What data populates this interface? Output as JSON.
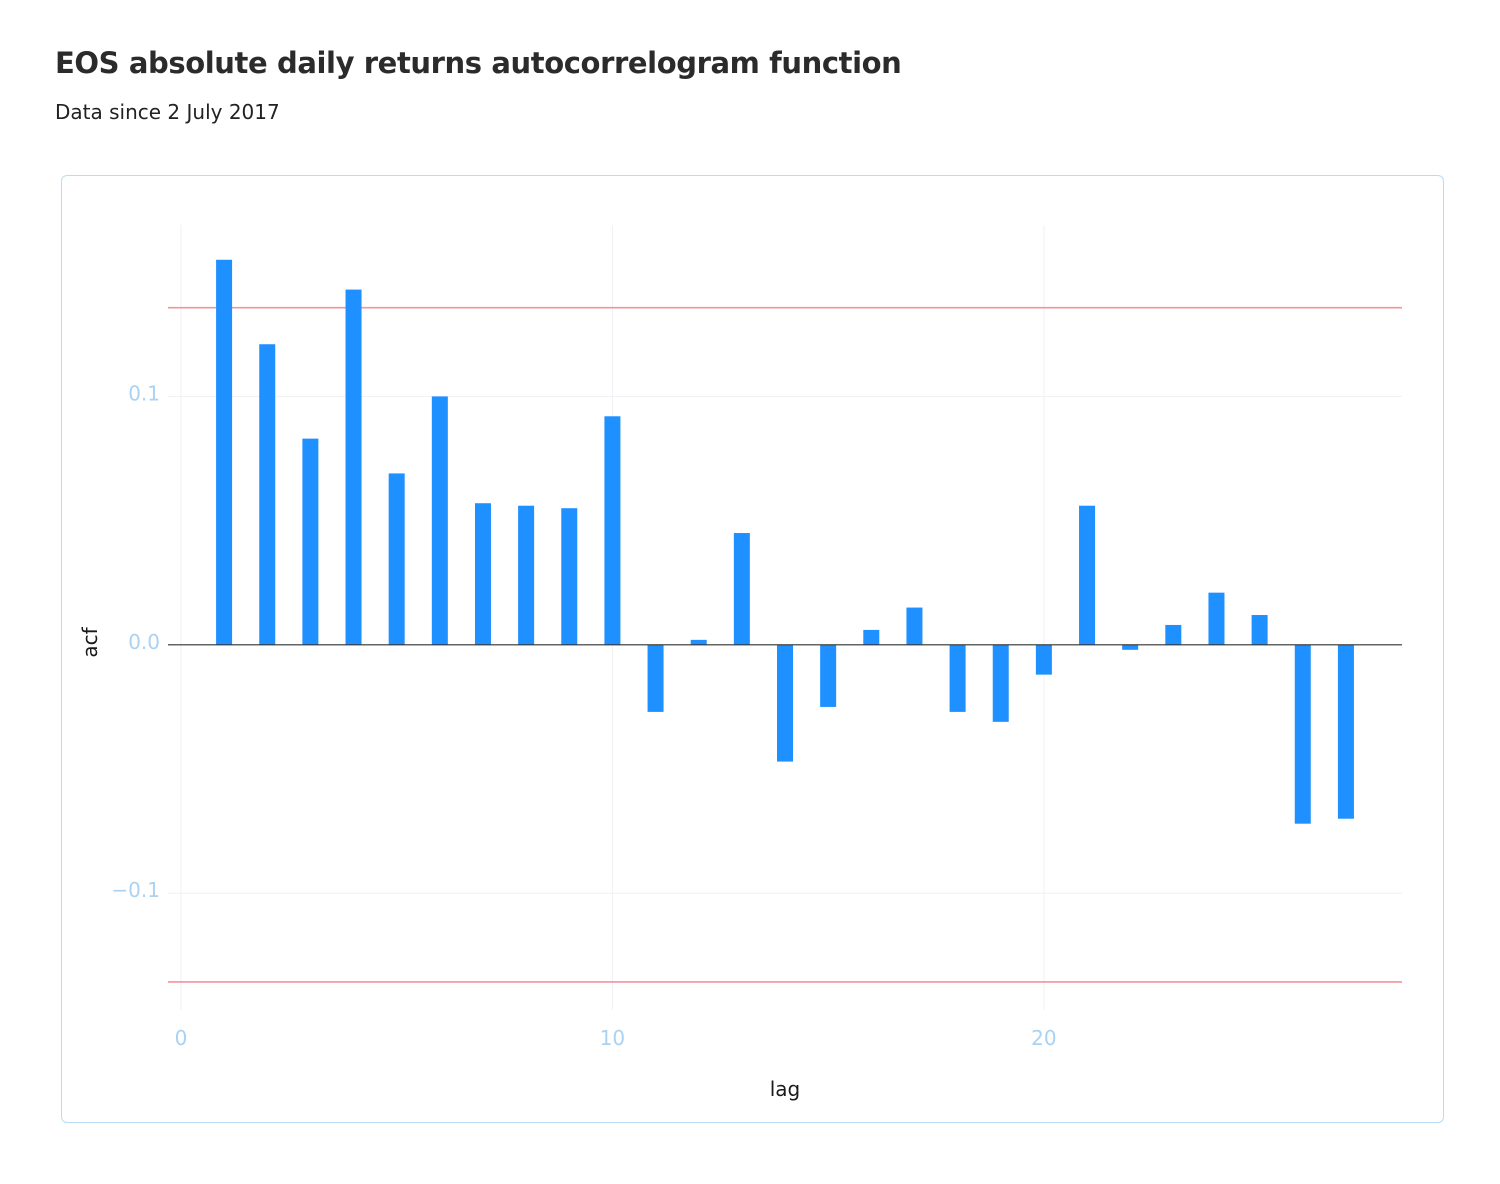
{
  "title": "EOS absolute daily returns autocorrelogram function",
  "subtitle": "Data since 2 July 2017",
  "colors": {
    "bar": "#1e90ff",
    "confidence_line": "#f2949a",
    "zero_line": "#333333",
    "grid": "#eef1f4",
    "tick_label": "#a9d2f3",
    "card_border": "#b8dcf5"
  },
  "chart_data": {
    "type": "bar",
    "xlabel": "lag",
    "ylabel": "acf",
    "xlim": [
      -0.3,
      28.3
    ],
    "ylim": [
      -0.147,
      0.169
    ],
    "x_ticks": [
      0,
      10,
      20
    ],
    "x_tick_labels": [
      "0",
      "10",
      "20"
    ],
    "y_ticks": [
      -0.1,
      0.0,
      0.1
    ],
    "y_tick_labels": [
      "−0.1",
      "0.0",
      "0.1"
    ],
    "grid": true,
    "confidence_bounds": [
      0.1357,
      -0.1357
    ],
    "x": [
      1,
      2,
      3,
      4,
      5,
      6,
      7,
      8,
      9,
      10,
      11,
      12,
      13,
      14,
      15,
      16,
      17,
      18,
      19,
      20,
      21,
      22,
      23,
      24,
      25,
      26,
      27
    ],
    "values": [
      0.155,
      0.121,
      0.083,
      0.143,
      0.069,
      0.1,
      0.057,
      0.056,
      0.055,
      0.092,
      -0.027,
      0.002,
      0.045,
      -0.047,
      -0.025,
      0.006,
      0.015,
      -0.027,
      -0.031,
      -0.012,
      0.056,
      -0.002,
      0.008,
      0.021,
      0.012,
      -0.072,
      -0.07
    ]
  }
}
